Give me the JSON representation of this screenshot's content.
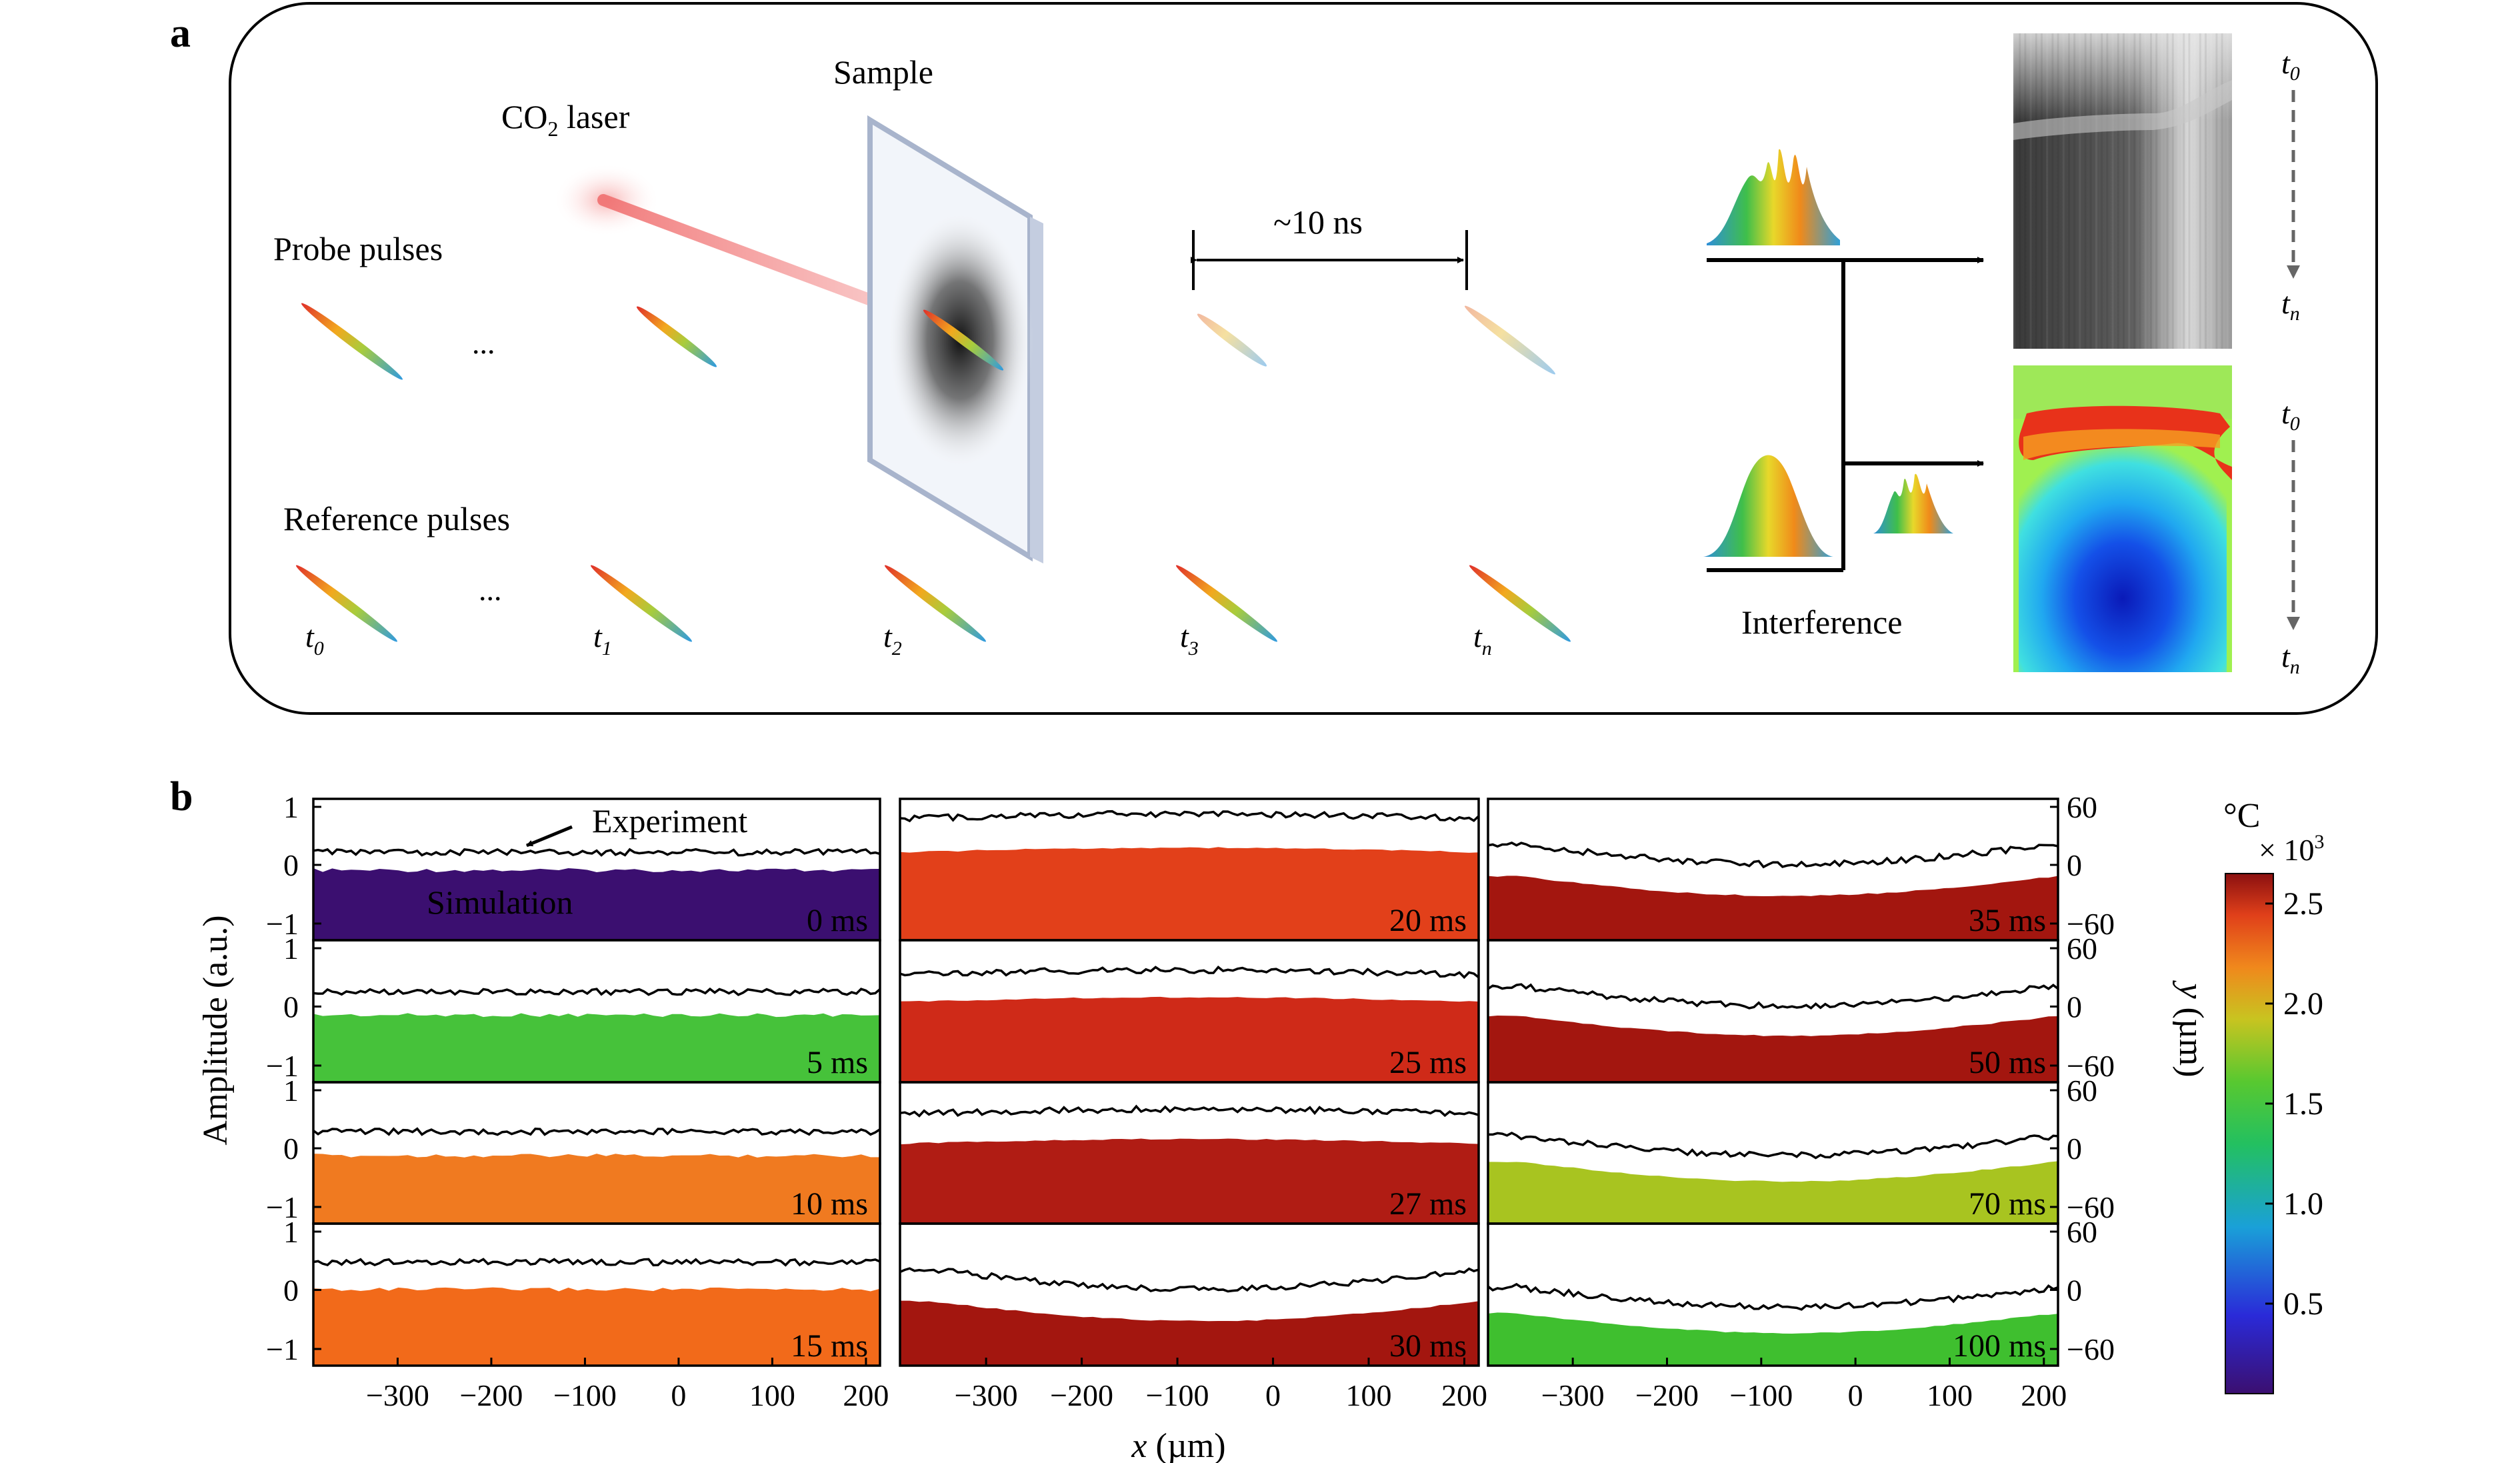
{
  "panel_a": {
    "label": "a",
    "laser_label": "CO",
    "laser_label_sub": "2",
    "laser_label_rest": " laser",
    "sample_label": "Sample",
    "probe_label": "Probe pulses",
    "reference_label": "Reference pulses",
    "ellipsis": "...",
    "interval_label": "~10 ns",
    "interference_label": "Interference",
    "time_labels": [
      {
        "base": "t",
        "sub": "0"
      },
      {
        "base": "t",
        "sub": "1"
      },
      {
        "base": "t",
        "sub": "2"
      },
      {
        "base": "t",
        "sub": "3"
      },
      {
        "base": "t",
        "sub": "n"
      }
    ],
    "image_time_top": {
      "base": "t",
      "sub": "0"
    },
    "image_time_bottom": {
      "base": "t",
      "sub": "n"
    }
  },
  "panel_b": {
    "label": "b",
    "experiment_label": "Experiment",
    "simulation_label": "Simulation",
    "y_left_label": "Amplitude (a.u.)",
    "y_right_label_var": "y",
    "y_right_label_unit": " (µm)",
    "x_label_var": "x",
    "x_label_unit": " (µm)",
    "left_ticks": [
      "1",
      "0",
      "−1"
    ],
    "right_ticks": [
      "60",
      "0",
      "−60"
    ],
    "x_ticks": [
      "−300",
      "−200",
      "−100",
      "0",
      "100",
      "200"
    ],
    "colorbar": {
      "unit": "°C",
      "multiplier": "× 10",
      "multiplier_exp": "3",
      "ticks": [
        "2.5",
        "2.0",
        "1.5",
        "1.0",
        "0.5"
      ],
      "tick_values": [
        2.5,
        2.0,
        1.5,
        1.0,
        0.5
      ],
      "range": [
        0.05,
        2.65
      ]
    }
  },
  "chart_data": {
    "type": "area",
    "x_range": [
      -390,
      215
    ],
    "y_left_range": [
      -1.3,
      1.3
    ],
    "y_right_range": [
      -80,
      80
    ],
    "panels": [
      {
        "time": "0 ms",
        "color_hex": "#3b0f70"
      },
      {
        "time": "5 ms",
        "color_hex": "#46c23a"
      },
      {
        "time": "10 ms",
        "color_hex": "#f07a20"
      },
      {
        "time": "15 ms",
        "color_hex": "#f26a1a"
      },
      {
        "time": "20 ms",
        "color_hex": "#e2401a"
      },
      {
        "time": "25 ms",
        "color_hex": "#cf2a18"
      },
      {
        "time": "27 ms",
        "color_hex": "#b01c14"
      },
      {
        "time": "30 ms",
        "color_hex": "#a3160f"
      },
      {
        "time": "35 ms",
        "color_hex": "#a3160f"
      },
      {
        "time": "50 ms",
        "color_hex": "#a3160f"
      },
      {
        "time": "70 ms",
        "color_hex": "#a8c420"
      },
      {
        "time": "100 ms",
        "color_hex": "#3fbf2f"
      }
    ]
  }
}
